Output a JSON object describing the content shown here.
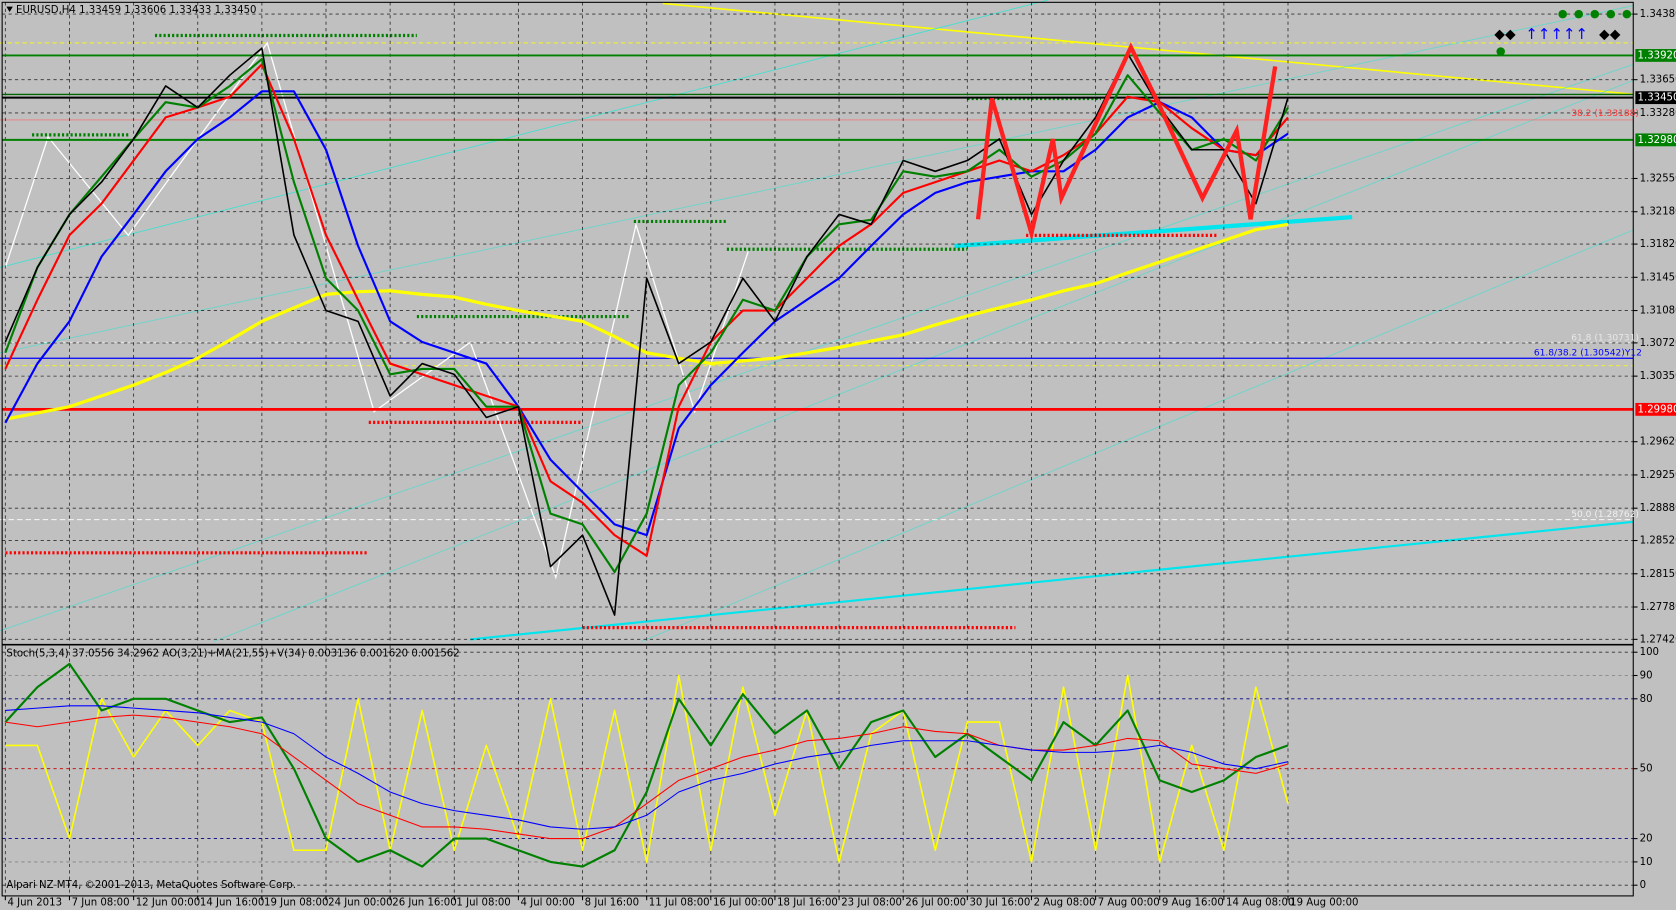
{
  "chart_data": [
    {
      "type": "line",
      "title": "EURUSD,H4  1.33459 1.33606 1.33433 1.33450",
      "categories": [
        "4 Jun 2013",
        null,
        "7 Jun 08:00",
        null,
        "12 Jun 00:00",
        null,
        "14 Jun 16:00",
        null,
        "19 Jun 08:00",
        null,
        "24 Jun 00:00",
        null,
        "26 Jun 16:00",
        null,
        "1 Jul 08:00",
        null,
        "4 Jul 00:00",
        null,
        "8 Jul 16:00",
        null,
        "11 Jul 08:00",
        null,
        "16 Jul 00:00",
        null,
        "18 Jul 16:00",
        null,
        "23 Jul 08:00",
        null,
        "26 Jul 00:00",
        null,
        "30 Jul 16:00",
        null,
        "2 Aug 08:00",
        null,
        "7 Aug 00:00",
        null,
        "9 Aug 16:00",
        null,
        "14 Aug 08:00",
        null,
        "19 Aug 00:00"
      ],
      "series": [
        {
          "color": "#ffff00",
          "width": 3,
          "values": [
            1.2987,
            1.2994,
            1.3001,
            1.3013,
            1.3025,
            1.3039,
            1.3055,
            1.3075,
            1.3096,
            1.3111,
            1.3126,
            1.3129,
            1.313,
            1.3126,
            1.3123,
            1.3115,
            1.3108,
            1.3102,
            1.3096,
            1.3079,
            1.3061,
            1.3055,
            1.3049,
            1.3052,
            1.3055,
            1.3061,
            1.3067,
            1.3074,
            1.3081,
            1.3092,
            1.3102,
            1.3111,
            1.312,
            1.313,
            1.3138,
            1.315,
            1.3162,
            1.3174,
            1.3186,
            1.3198,
            1.3204
          ]
        },
        {
          "color": "#0000ff",
          "width": 2,
          "values": [
            1.2983,
            1.3049,
            1.3096,
            1.3168,
            1.3215,
            1.3263,
            1.3299,
            1.3323,
            1.3352,
            1.3352,
            1.3287,
            1.318,
            1.3096,
            1.3073,
            1.3061,
            1.3049,
            1.3001,
            1.2942,
            1.2906,
            1.287,
            1.2858,
            1.2977,
            1.3025,
            1.3061,
            1.3096,
            1.312,
            1.3144,
            1.318,
            1.3215,
            1.3239,
            1.3251,
            1.3257,
            1.3263,
            1.3263,
            1.3287,
            1.3323,
            1.334,
            1.3323,
            1.3287,
            1.3281,
            1.3305
          ]
        },
        {
          "color": "#ff0000",
          "width": 2,
          "values": [
            1.3043,
            1.312,
            1.3192,
            1.3227,
            1.3275,
            1.3323,
            1.3334,
            1.3346,
            1.3382,
            1.3299,
            1.3192,
            1.312,
            1.3049,
            1.3037,
            1.3025,
            1.3013,
            1.3001,
            1.2918,
            1.2894,
            1.2858,
            1.2835,
            1.3001,
            1.3073,
            1.3108,
            1.3108,
            1.3144,
            1.318,
            1.3204,
            1.3239,
            1.3251,
            1.3263,
            1.3275,
            1.3263,
            1.3281,
            1.3305,
            1.3346,
            1.334,
            1.3311,
            1.3287,
            1.3281,
            1.3323
          ]
        },
        {
          "color": "#008000",
          "width": 2,
          "values": [
            1.3061,
            1.3156,
            1.3215,
            1.3257,
            1.3299,
            1.334,
            1.3334,
            1.3358,
            1.3388,
            1.3251,
            1.3144,
            1.3108,
            1.3037,
            1.3043,
            1.3043,
            1.3001,
            1.3001,
            1.2882,
            1.287,
            1.2817,
            1.2882,
            1.3025,
            1.3061,
            1.312,
            1.3108,
            1.3168,
            1.3204,
            1.3209,
            1.3263,
            1.3257,
            1.3263,
            1.3287,
            1.3257,
            1.3275,
            1.3305,
            1.337,
            1.3328,
            1.3287,
            1.3299,
            1.3275,
            1.3334
          ]
        },
        {
          "color": "#000000",
          "width": 1.5,
          "values": [
            1.3073,
            1.3156,
            1.3215,
            1.3251,
            1.3299,
            1.3358,
            1.3334,
            1.337,
            1.34,
            1.3192,
            1.3108,
            1.3096,
            1.3013,
            1.3049,
            1.3037,
            1.2989,
            1.3001,
            1.2823,
            1.2858,
            1.2769,
            1.3144,
            1.3049,
            1.3073,
            1.3144,
            1.3096,
            1.3168,
            1.3215,
            1.3204,
            1.3275,
            1.3263,
            1.3275,
            1.3299,
            1.3215,
            1.3275,
            1.3323,
            1.3394,
            1.3334,
            1.3287,
            1.3287,
            1.3227,
            1.3345
          ]
        }
      ],
      "ylim": [
        1.27372,
        1.34511
      ],
      "yticks": [
        {
          "value": 1.3438,
          "label": "1.34380"
        },
        {
          "value": 1.3365,
          "label": "1.33650"
        },
        {
          "value": 1.3328,
          "label": "1.33280"
        },
        {
          "value": 1.3255,
          "label": "1.32550"
        },
        {
          "value": 1.3218,
          "label": "1.32180"
        },
        {
          "value": 1.3182,
          "label": "1.31820"
        },
        {
          "value": 1.3145,
          "label": "1.31450"
        },
        {
          "value": 1.3108,
          "label": "1.31080"
        },
        {
          "value": 1.3072,
          "label": "1.30720"
        },
        {
          "value": 1.3035,
          "label": "1.30350"
        },
        {
          "value": 1.2962,
          "label": "1.29620"
        },
        {
          "value": 1.2925,
          "label": "1.29250"
        },
        {
          "value": 1.2888,
          "label": "1.28880"
        },
        {
          "value": 1.2852,
          "label": "1.28520"
        },
        {
          "value": 1.2815,
          "label": "1.28150"
        },
        {
          "value": 1.2778,
          "label": "1.27780"
        },
        {
          "value": 1.2742,
          "label": "1.27420"
        }
      ],
      "levels": [
        {
          "value": 1.3392,
          "label": "1.33920",
          "color": "#008000"
        },
        {
          "value": 1.3345,
          "label": "1.33450",
          "color": "#000000"
        },
        {
          "value": 1.3298,
          "label": "1.32980",
          "color": "#008000"
        },
        {
          "value": 1.2998,
          "label": "1.29980",
          "color": "#ff0000"
        }
      ],
      "annotations": [
        "38.2 (1.33188)",
        "61.8 (1.30731)",
        "61.8/38.2 (1.30542)Y12",
        "50.0 (1.28762)"
      ],
      "grid": true
    },
    {
      "type": "line",
      "title": "Stoch(5,3,4) 37.0556 34.2962  AO(3,21)+MA(21,55)+V(34) 0.003136 0.001620 0.001562",
      "footer": "Alpari NZ MT4, ©2001-2013, MetaQuotes Software Corp.",
      "series": [
        {
          "color": "#ffff00",
          "width": 1.5,
          "values": [
            60,
            60,
            20,
            80,
            55,
            75,
            60,
            75,
            70,
            15,
            15,
            80,
            15,
            75,
            15,
            60,
            20,
            80,
            15,
            75,
            10,
            90,
            15,
            85,
            30,
            75,
            10,
            65,
            75,
            15,
            70,
            70,
            10,
            85,
            15,
            90,
            10,
            60,
            15,
            85,
            35
          ]
        },
        {
          "color": "#008000",
          "width": 2,
          "values": [
            70,
            85,
            95,
            75,
            80,
            80,
            75,
            70,
            72,
            50,
            20,
            10,
            15,
            8,
            20,
            20,
            15,
            10,
            8,
            15,
            40,
            80,
            60,
            82,
            65,
            75,
            50,
            70,
            75,
            55,
            65,
            55,
            45,
            70,
            60,
            75,
            45,
            40,
            45,
            55,
            60
          ]
        },
        {
          "color": "#ff0000",
          "width": 1,
          "values": [
            70,
            68,
            70,
            72,
            73,
            72,
            70,
            68,
            65,
            55,
            45,
            35,
            30,
            25,
            25,
            24,
            22,
            20,
            20,
            25,
            35,
            45,
            50,
            55,
            58,
            62,
            63,
            65,
            68,
            66,
            65,
            60,
            58,
            58,
            60,
            63,
            62,
            52,
            50,
            48,
            52
          ]
        },
        {
          "color": "#0000ff",
          "width": 1,
          "values": [
            75,
            76,
            77,
            77,
            76,
            75,
            74,
            72,
            70,
            65,
            55,
            48,
            40,
            35,
            32,
            30,
            28,
            25,
            24,
            25,
            30,
            40,
            45,
            48,
            52,
            55,
            57,
            60,
            62,
            62,
            62,
            60,
            58,
            57,
            57,
            58,
            60,
            57,
            52,
            50,
            53
          ]
        }
      ],
      "ylim": [
        -4.6,
        102.75
      ],
      "yticks": [
        100,
        90,
        80,
        50,
        20,
        10,
        0
      ],
      "grid": true
    }
  ]
}
